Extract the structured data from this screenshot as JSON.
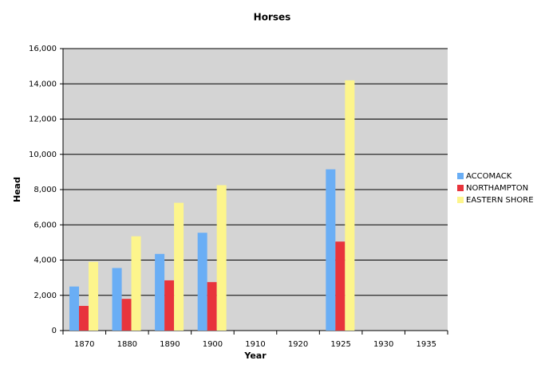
{
  "chart_data": {
    "type": "bar",
    "title": "Horses",
    "x_label": "Year",
    "y_label": "Head",
    "categories": [
      "1870",
      "1880",
      "1890",
      "1900",
      "1910",
      "1920",
      "1925",
      "1930",
      "1935"
    ],
    "series": [
      {
        "name": "ACCOMACK",
        "color": "#6aaef5",
        "values": [
          2500,
          3550,
          4350,
          5550,
          null,
          null,
          9150,
          null,
          null
        ]
      },
      {
        "name": "NORTHAMPTON",
        "color": "#e8343c",
        "values": [
          1400,
          1800,
          2850,
          2750,
          null,
          null,
          5050,
          null,
          null
        ]
      },
      {
        "name": "EASTERN SHORE",
        "color": "#fdf58c",
        "values": [
          3900,
          5350,
          7250,
          8250,
          null,
          null,
          14200,
          null,
          null
        ]
      }
    ],
    "ylim": [
      0,
      16000
    ],
    "yticks": [
      0,
      {
        "value": 2000,
        "label": "2,000"
      },
      {
        "value": 4000,
        "label": "4,000"
      },
      {
        "value": 6000,
        "label": "6,000"
      },
      {
        "value": 8000,
        "label": "8,000"
      },
      {
        "value": 10000,
        "label": "10,000"
      },
      {
        "value": 12000,
        "label": "12,000"
      },
      {
        "value": 14000,
        "label": "14,000"
      },
      {
        "value": 16000,
        "label": "16,000"
      }
    ],
    "grid": true,
    "legend": "right"
  }
}
